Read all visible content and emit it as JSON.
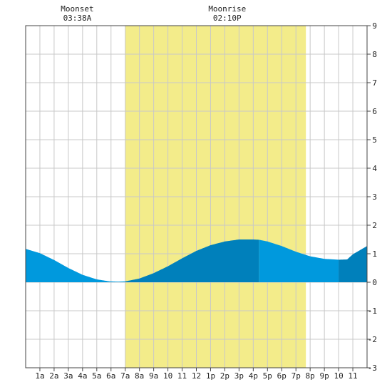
{
  "chart_data": {
    "type": "area",
    "annotations": {
      "moonset": {
        "label": "Moonset",
        "time": "03:38A",
        "hour": 3.63
      },
      "moonrise": {
        "label": "Moonrise",
        "time": "02:10P",
        "hour": 14.17
      }
    },
    "daylight": {
      "start_hour": 7.0,
      "end_hour": 19.7
    },
    "xlim": [
      0,
      24
    ],
    "ylim": [
      -3,
      9
    ],
    "y_ticks": [
      "-3",
      "-2",
      "-1",
      "0",
      "1",
      "2",
      "3",
      "4",
      "5",
      "6",
      "7",
      "8",
      "9"
    ],
    "x_ticks": [
      "1a",
      "2a",
      "3a",
      "4a",
      "5a",
      "6a",
      "7a",
      "8a",
      "9a",
      "10",
      "11",
      "12",
      "1p",
      "2p",
      "3p",
      "4p",
      "5p",
      "6p",
      "7p",
      "8p",
      "9p",
      "10",
      "11"
    ],
    "grid": true,
    "series": [
      {
        "x": [
          0,
          1,
          2,
          3,
          4,
          5,
          5.9,
          6.5,
          7.0,
          8,
          9,
          10,
          11,
          12,
          13,
          14,
          15,
          16,
          16.4,
          17,
          18,
          19,
          20,
          21,
          22,
          22.6,
          23,
          24
        ],
        "y": [
          1.17,
          1.02,
          0.78,
          0.5,
          0.26,
          0.1,
          0.03,
          0.02,
          0.03,
          0.13,
          0.32,
          0.56,
          0.84,
          1.1,
          1.3,
          1.43,
          1.5,
          1.5,
          1.49,
          1.43,
          1.27,
          1.07,
          0.91,
          0.82,
          0.79,
          0.8,
          0.98,
          1.27
        ]
      }
    ],
    "band_boundaries": [
      0,
      7.0,
      16.4,
      22.0,
      24
    ],
    "colors": {
      "light_fill": "#0099dd",
      "dark_fill": "#0080bb",
      "daylight": "#f3ec8a",
      "grid": "#c8c8c8",
      "frame": "#444444"
    }
  }
}
